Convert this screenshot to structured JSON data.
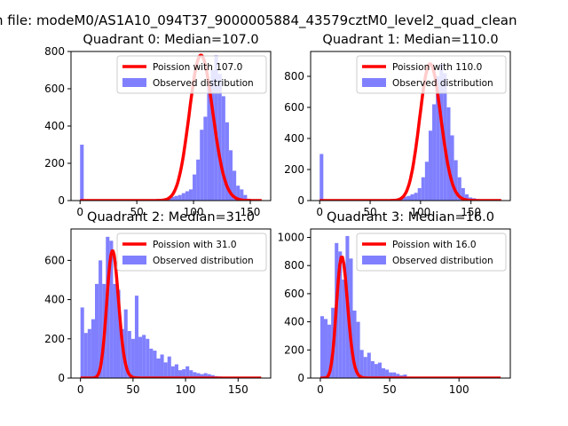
{
  "figure": {
    "suptitle": "n file: modeM0/AS1A10_094T37_9000005884_43579cztM0_level2_quad_clean"
  },
  "colors": {
    "poisson": "#ff0000",
    "observed": "#8080ff",
    "axes": "#000000",
    "legend_border": "#cccccc"
  },
  "chart_data": [
    {
      "type": "bar",
      "title": "Quadrant 0: Median=107.0",
      "xlim": [
        -8,
        168
      ],
      "ylim": [
        0,
        800
      ],
      "xticks": [
        0,
        50,
        100,
        150
      ],
      "yticks": [
        0,
        200,
        400,
        600,
        800
      ],
      "legend": {
        "placement": "upper right",
        "entries": [
          "Poission with 107.0",
          "Observed distribution"
        ]
      },
      "hist": {
        "name": "Observed distribution",
        "bin_edges_start": 0,
        "bin_width": 3.2,
        "counts": [
          300,
          0,
          0,
          0,
          0,
          0,
          0,
          0,
          0,
          0,
          0,
          0,
          0,
          0,
          0,
          0,
          0,
          0,
          0,
          0,
          0,
          0,
          5,
          8,
          10,
          20,
          25,
          30,
          40,
          50,
          60,
          140,
          220,
          380,
          450,
          620,
          700,
          780,
          680,
          560,
          420,
          270,
          160,
          80,
          60,
          30,
          10,
          5,
          2,
          1
        ]
      },
      "poisson": {
        "name": "Poission with 107.0",
        "lambda": 107.0,
        "scale": 1.0,
        "x_range": [
          0,
          160
        ]
      }
    },
    {
      "type": "bar",
      "title": "Quadrant 1: Median=110.0",
      "xlim": [
        -9,
        189
      ],
      "ylim": [
        0,
        960
      ],
      "xticks": [
        0,
        50,
        100,
        150
      ],
      "yticks": [
        0,
        200,
        400,
        600,
        800
      ],
      "legend": {
        "placement": "upper right",
        "entries": [
          "Poission with 110.0",
          "Observed distribution"
        ]
      },
      "hist": {
        "name": "Observed distribution",
        "bin_edges_start": 0,
        "bin_width": 3.6,
        "counts": [
          300,
          0,
          0,
          0,
          0,
          0,
          0,
          0,
          0,
          0,
          0,
          0,
          0,
          0,
          0,
          0,
          0,
          0,
          0,
          0,
          0,
          0,
          20,
          25,
          30,
          40,
          50,
          80,
          150,
          250,
          450,
          620,
          800,
          880,
          820,
          600,
          420,
          260,
          150,
          80,
          40,
          20,
          15,
          10,
          8,
          5,
          3,
          2,
          1,
          1
        ]
      },
      "poisson": {
        "name": "Poission with 110.0",
        "lambda": 110.0,
        "scale": 1.0,
        "x_range": [
          0,
          180
        ]
      }
    },
    {
      "type": "bar",
      "title": "Quadrant 2: Median=31.0",
      "xlim": [
        -9,
        181
      ],
      "ylim": [
        0,
        760
      ],
      "xticks": [
        0,
        50,
        100,
        150
      ],
      "yticks": [
        0,
        200,
        400,
        600
      ],
      "legend": {
        "placement": "upper right",
        "entries": [
          "Poission with 31.0",
          "Observed distribution"
        ]
      },
      "hist": {
        "name": "Observed distribution",
        "bin_edges_start": 0,
        "bin_width": 3.45,
        "counts": [
          360,
          230,
          250,
          300,
          480,
          600,
          480,
          720,
          700,
          480,
          450,
          250,
          350,
          240,
          200,
          420,
          210,
          220,
          200,
          150,
          140,
          100,
          120,
          80,
          110,
          60,
          70,
          40,
          45,
          60,
          40,
          30,
          25,
          20,
          25,
          20,
          15,
          10,
          8,
          5,
          5,
          4,
          3,
          2,
          2,
          1,
          1,
          1,
          1,
          1
        ]
      },
      "poisson": {
        "name": "Poission with 31.0",
        "lambda": 31.0,
        "scale": 0.9,
        "x_range": [
          0,
          172
        ]
      }
    },
    {
      "type": "bar",
      "title": "Quadrant 3: Median=16.0",
      "xlim": [
        -7,
        137
      ],
      "ylim": [
        0,
        1060
      ],
      "xticks": [
        0,
        50,
        100
      ],
      "yticks": [
        0,
        200,
        400,
        600,
        800,
        1000
      ],
      "legend": {
        "placement": "upper right",
        "entries": [
          "Poission with 16.0",
          "Observed distribution"
        ]
      },
      "hist": {
        "name": "Observed distribution",
        "bin_edges_start": 0,
        "bin_width": 2.6,
        "counts": [
          440,
          420,
          380,
          500,
          960,
          900,
          700,
          1010,
          850,
          480,
          400,
          200,
          150,
          180,
          120,
          100,
          110,
          70,
          60,
          40,
          40,
          30,
          20,
          25,
          10,
          8,
          6,
          5,
          4,
          3,
          3,
          2,
          2,
          1,
          1,
          1,
          1,
          1,
          1,
          1,
          1,
          0,
          0,
          0,
          0,
          0,
          0,
          0,
          0,
          1
        ]
      },
      "poisson": {
        "name": "Poission with 16.0",
        "lambda": 16.0,
        "scale": 0.85,
        "x_range": [
          0,
          130
        ]
      }
    }
  ]
}
